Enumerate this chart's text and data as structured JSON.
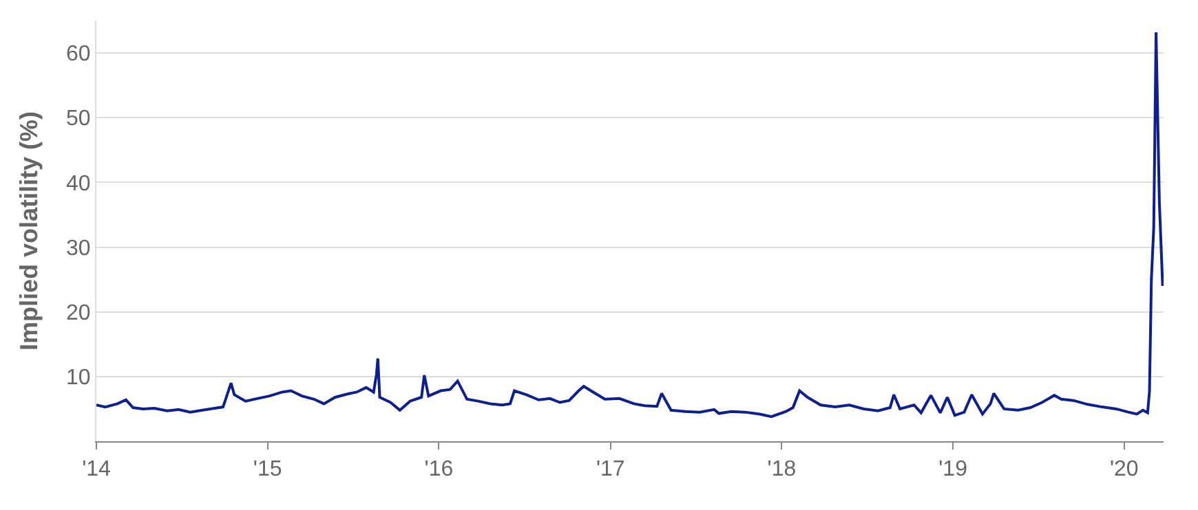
{
  "chart_data": {
    "type": "line",
    "ylabel": "Implied volatility (%)",
    "x": [
      "2014-01-01",
      "2014-01-20",
      "2014-02-15",
      "2014-03-05",
      "2014-03-20",
      "2014-04-10",
      "2014-05-05",
      "2014-06-01",
      "2014-06-25",
      "2014-07-20",
      "2014-08-15",
      "2014-09-10",
      "2014-09-28",
      "2014-10-15",
      "2014-10-22",
      "2014-11-15",
      "2014-12-10",
      "2015-01-05",
      "2015-02-01",
      "2015-02-20",
      "2015-03-15",
      "2015-04-10",
      "2015-05-01",
      "2015-05-25",
      "2015-06-20",
      "2015-07-10",
      "2015-07-30",
      "2015-08-15",
      "2015-08-21",
      "2015-08-24",
      "2015-08-28",
      "2015-09-20",
      "2015-10-10",
      "2015-11-01",
      "2015-11-25",
      "2015-12-01",
      "2015-12-10",
      "2016-01-05",
      "2016-01-25",
      "2016-02-10",
      "2016-03-01",
      "2016-03-25",
      "2016-04-20",
      "2016-05-15",
      "2016-06-01",
      "2016-06-10",
      "2016-07-05",
      "2016-08-01",
      "2016-08-25",
      "2016-09-15",
      "2016-10-05",
      "2016-10-25",
      "2016-11-05",
      "2016-11-25",
      "2016-12-20",
      "2017-01-20",
      "2017-02-20",
      "2017-03-15",
      "2017-04-10",
      "2017-04-20",
      "2017-05-10",
      "2017-06-10",
      "2017-07-10",
      "2017-08-10",
      "2017-08-20",
      "2017-09-15",
      "2017-10-15",
      "2017-11-15",
      "2017-12-10",
      "2018-01-10",
      "2018-01-25",
      "2018-02-08",
      "2018-02-25",
      "2018-03-25",
      "2018-04-25",
      "2018-05-25",
      "2018-06-25",
      "2018-07-25",
      "2018-08-20",
      "2018-08-28",
      "2018-09-10",
      "2018-10-10",
      "2018-10-25",
      "2018-11-15",
      "2018-12-05",
      "2018-12-20",
      "2019-01-05",
      "2019-01-25",
      "2019-02-10",
      "2019-03-05",
      "2019-03-22",
      "2019-03-29",
      "2019-04-20",
      "2019-05-20",
      "2019-06-15",
      "2019-07-10",
      "2019-08-05",
      "2019-08-20",
      "2019-09-15",
      "2019-10-15",
      "2019-11-15",
      "2019-12-15",
      "2020-01-10",
      "2020-01-28",
      "2020-02-10",
      "2020-02-20",
      "2020-02-24",
      "2020-02-28",
      "2020-03-04",
      "2020-03-09",
      "2020-03-16",
      "2020-03-23"
    ],
    "series": [
      {
        "color": "#0f1f8c",
        "values": [
          5.6,
          5.3,
          5.8,
          6.4,
          5.2,
          5.0,
          5.1,
          4.7,
          4.9,
          4.5,
          4.8,
          5.1,
          5.3,
          9.0,
          7.2,
          6.2,
          6.6,
          7.0,
          7.6,
          7.8,
          7.0,
          6.5,
          5.8,
          6.8,
          7.3,
          7.6,
          8.3,
          7.6,
          10.3,
          12.8,
          6.8,
          6.0,
          4.8,
          6.2,
          6.8,
          10.2,
          7.0,
          7.8,
          8.0,
          9.3,
          6.5,
          6.2,
          5.8,
          5.6,
          5.8,
          7.8,
          7.2,
          6.4,
          6.6,
          6.0,
          6.3,
          7.8,
          8.5,
          7.6,
          6.5,
          6.6,
          5.8,
          5.5,
          5.4,
          7.4,
          4.8,
          4.6,
          4.5,
          4.9,
          4.3,
          4.6,
          4.5,
          4.2,
          3.8,
          4.6,
          5.2,
          7.8,
          6.8,
          5.6,
          5.3,
          5.6,
          5.0,
          4.7,
          5.2,
          7.2,
          5.0,
          5.6,
          4.4,
          7.1,
          4.4,
          6.8,
          4.0,
          4.5,
          7.2,
          4.2,
          5.8,
          7.4,
          5.0,
          4.8,
          5.2,
          6.0,
          7.1,
          6.5,
          6.3,
          5.7,
          5.3,
          5.0,
          4.5,
          4.2,
          4.8,
          4.4,
          7.8,
          25.0,
          33.0,
          63.2,
          37.0,
          24.0
        ]
      }
    ],
    "xlim": [
      "2014-01-01",
      "2020-03-25"
    ],
    "xticks": [
      {
        "value": "2014-01-01",
        "label": "'14"
      },
      {
        "value": "2015-01-01",
        "label": "'15"
      },
      {
        "value": "2016-01-01",
        "label": "'16"
      },
      {
        "value": "2017-01-01",
        "label": "'17"
      },
      {
        "value": "2018-01-01",
        "label": "'18"
      },
      {
        "value": "2019-01-01",
        "label": "'19"
      },
      {
        "value": "2020-01-01",
        "label": "'20"
      }
    ],
    "ylim": [
      0,
      65
    ],
    "yticks": [
      10,
      20,
      30,
      40,
      50,
      60
    ],
    "grid": "y",
    "marker": "none",
    "line_style": "solid",
    "legend": false
  }
}
